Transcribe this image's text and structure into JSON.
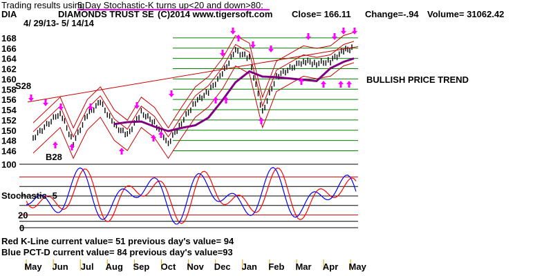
{
  "header": {
    "line1_prefix": "Trading results using",
    "line1_rule": "5 Day Stochastic-K turns up<20 and down>80:",
    "symbol": "DIA",
    "name": "DIAMONDS TRUST SE",
    "copyright": "(C)2014 www.tigersoft.com",
    "close": "Close=  166.11",
    "change": "Change=-.94",
    "volume": "Volume=  31062.42",
    "date_range": "4/ 29/13- 5/ 14/14"
  },
  "annotations": {
    "s28": "S28",
    "b28": "B28",
    "trend": "BULLISH PRICE TREND",
    "stoch_label": "Stochastic- 5"
  },
  "footer": {
    "red_line": "Red K-Line current value= 51  previous day's value= 94",
    "blue_line": "Blue PCT-D current value= 84  previous day's value=93"
  },
  "colors": {
    "price_bar": "#000000",
    "band": "#cc0000",
    "ma": "#800080",
    "arrow": "#ff00ff",
    "k_line": "#ff0000",
    "d_line": "#0000ff",
    "grid_green": "#008000",
    "underline": "#ff00ff"
  },
  "chart_data": [
    {
      "type": "line",
      "title": "DIAMONDS TRUST SE",
      "y_ticks": [
        146,
        148,
        150,
        152,
        154,
        156,
        158,
        160,
        162,
        164,
        166,
        168
      ],
      "ylim": [
        145,
        170
      ],
      "x_ticks": [
        "May",
        "Jun",
        "Jul",
        "Aug",
        "Sep",
        "Oct",
        "Nov",
        "Dec",
        "Jan",
        "Feb",
        "Mar",
        "Apr",
        "May"
      ],
      "close_series": [
        {
          "month": "May",
          "value": 148.5
        },
        {
          "month": "Jun",
          "value": 153.5
        },
        {
          "month": "Jun",
          "value": 147.5
        },
        {
          "month": "Jul",
          "value": 153.0
        },
        {
          "month": "Jul",
          "value": 155.5
        },
        {
          "month": "Aug",
          "value": 151.0
        },
        {
          "month": "Aug",
          "value": 149.0
        },
        {
          "month": "Sep",
          "value": 153.5
        },
        {
          "month": "Sep",
          "value": 151.5
        },
        {
          "month": "Oct",
          "value": 147.5
        },
        {
          "month": "Oct",
          "value": 151.5
        },
        {
          "month": "Nov",
          "value": 155.5
        },
        {
          "month": "Nov",
          "value": 157.5
        },
        {
          "month": "Dec",
          "value": 161.0
        },
        {
          "month": "Dec",
          "value": 165.5
        },
        {
          "month": "Jan",
          "value": 164.0
        },
        {
          "month": "Jan",
          "value": 153.5
        },
        {
          "month": "Feb",
          "value": 160.5
        },
        {
          "month": "Mar",
          "value": 163.5
        },
        {
          "month": "Mar",
          "value": 163.0
        },
        {
          "month": "Apr",
          "value": 163.5
        },
        {
          "month": "Apr",
          "value": 165.5
        },
        {
          "month": "May",
          "value": 166.11
        }
      ]
    },
    {
      "type": "line",
      "title": "Stochastic- 5",
      "y_ticks": [
        0,
        20,
        50,
        100
      ],
      "ylim": [
        0,
        100
      ],
      "series": [
        {
          "name": "Red K-Line",
          "current": 51,
          "previous": 94
        },
        {
          "name": "Blue PCT-D",
          "current": 84,
          "previous": 93
        }
      ]
    }
  ]
}
